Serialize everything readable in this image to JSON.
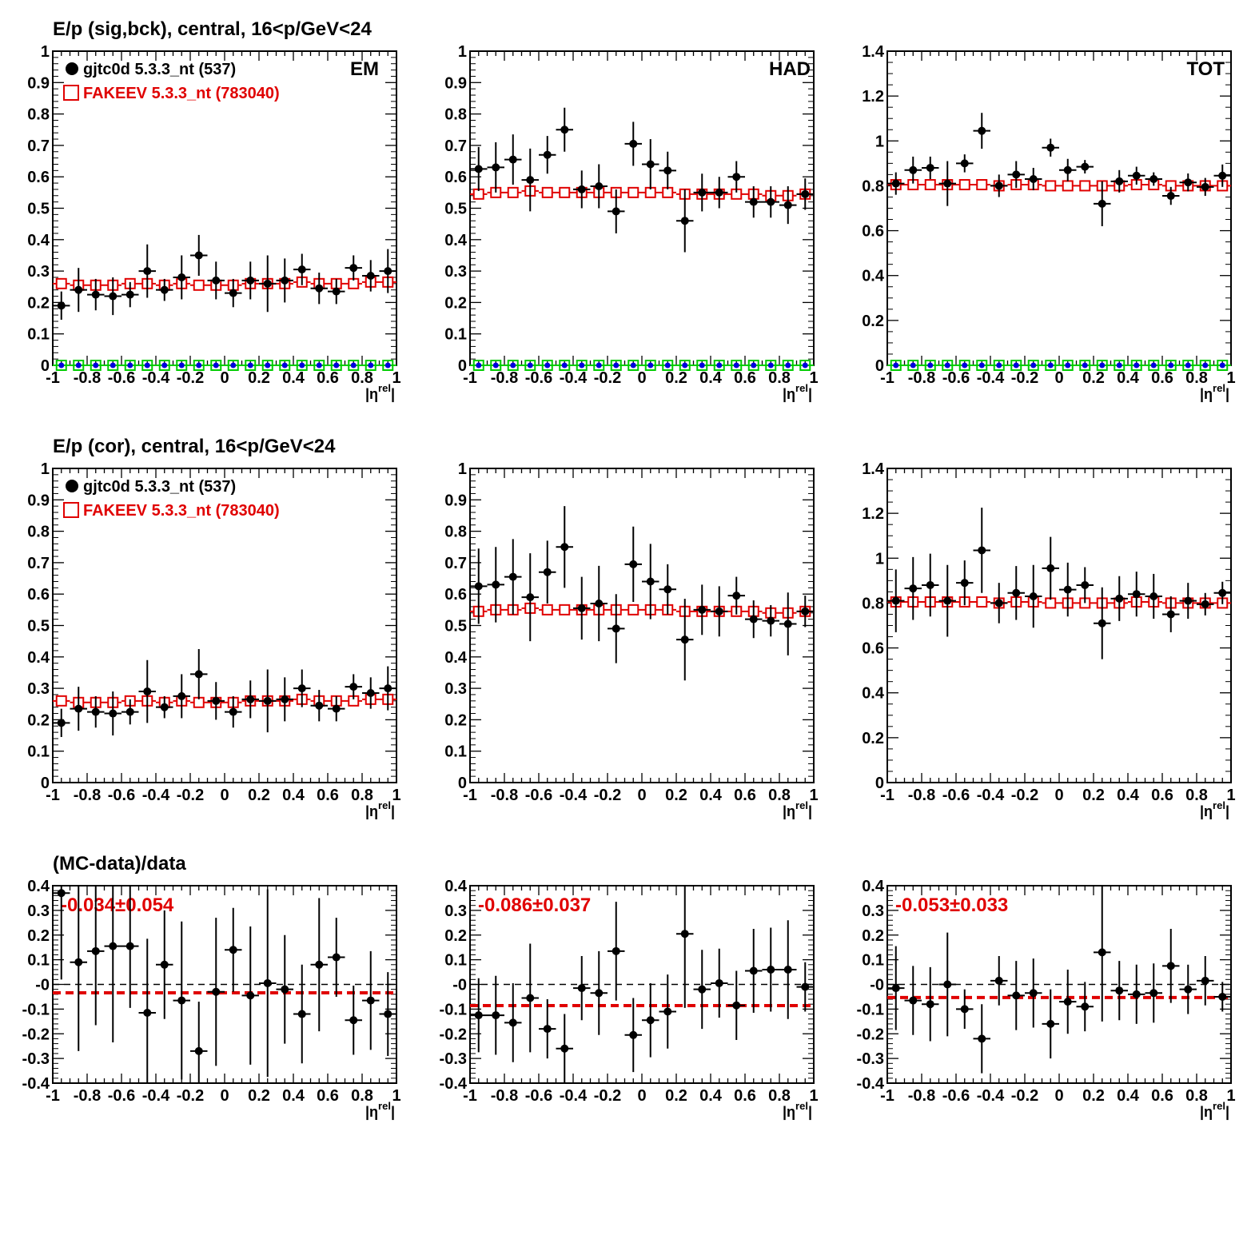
{
  "row_titles": [
    "E/p (sig,bck), central, 16<p/GeV<24",
    "E/p (cor), central, 16<p/GeV<24",
    "(MC-data)/data"
  ],
  "legend": {
    "data_label": "gjtc0d 5.3.3_nt (537)",
    "mc_label": "FAKEEV 5.3.3_nt (783040)"
  },
  "column_labels": [
    "EM",
    "HAD",
    "TOT"
  ],
  "x_axis_label": "|η^rel|",
  "ratio_labels": [
    "-0.034±0.054",
    "-0.086±0.037",
    "-0.053±0.033"
  ],
  "colors": {
    "data": "#000000",
    "mc": "#e00000",
    "green": "#00cc00",
    "blue": "#0000dd",
    "ratio_line": "#e00000"
  },
  "chart_data": [
    {
      "type": "scatter",
      "panel": "row1-EM",
      "title": "E/p (sig,bck), central, 16<p/GeV<24",
      "corner_label": "EM",
      "x": [
        -0.95,
        -0.85,
        -0.75,
        -0.65,
        -0.55,
        -0.45,
        -0.35,
        -0.25,
        -0.15,
        -0.05,
        0.05,
        0.15,
        0.25,
        0.35,
        0.45,
        0.55,
        0.65,
        0.75,
        0.85,
        0.95
      ],
      "xlim": [
        -1,
        1
      ],
      "ylim": [
        0,
        1
      ],
      "yticks": [
        "0",
        "0.1",
        "0.2",
        "0.3",
        "0.4",
        "0.5",
        "0.6",
        "0.7",
        "0.8",
        "0.9",
        "1"
      ],
      "series": [
        {
          "name": "gjtc0d 5.3.3_nt (537)",
          "values": [
            0.19,
            0.24,
            0.225,
            0.22,
            0.225,
            0.3,
            0.24,
            0.28,
            0.35,
            0.27,
            0.23,
            0.27,
            0.26,
            0.27,
            0.305,
            0.245,
            0.235,
            0.31,
            0.285,
            0.3
          ],
          "errors": [
            0.045,
            0.07,
            0.05,
            0.06,
            0.04,
            0.085,
            0.035,
            0.07,
            0.065,
            0.06,
            0.045,
            0.06,
            0.09,
            0.07,
            0.05,
            0.05,
            0.04,
            0.04,
            0.05,
            0.07
          ]
        },
        {
          "name": "FAKEEV 5.3.3_nt (783040)",
          "values": [
            0.26,
            0.255,
            0.255,
            0.255,
            0.26,
            0.26,
            0.255,
            0.26,
            0.255,
            0.255,
            0.255,
            0.26,
            0.26,
            0.26,
            0.265,
            0.26,
            0.26,
            0.26,
            0.265,
            0.265
          ]
        },
        {
          "name": "",
          "values": [
            0,
            0,
            0,
            0,
            0,
            0,
            0,
            0,
            0,
            0,
            0,
            0,
            0,
            0,
            0,
            0,
            0,
            0,
            0,
            0
          ]
        }
      ]
    },
    {
      "type": "scatter",
      "panel": "row1-HAD",
      "corner_label": "HAD",
      "x": [
        -0.95,
        -0.85,
        -0.75,
        -0.65,
        -0.55,
        -0.45,
        -0.35,
        -0.25,
        -0.15,
        -0.05,
        0.05,
        0.15,
        0.25,
        0.35,
        0.45,
        0.55,
        0.65,
        0.75,
        0.85,
        0.95
      ],
      "xlim": [
        -1,
        1
      ],
      "ylim": [
        0,
        1
      ],
      "yticks": [
        "0",
        "0.1",
        "0.2",
        "0.3",
        "0.4",
        "0.5",
        "0.6",
        "0.7",
        "0.8",
        "0.9",
        "1"
      ],
      "series": [
        {
          "name": "gjtc0d 5.3.3_nt (537)",
          "values": [
            0.625,
            0.63,
            0.655,
            0.59,
            0.67,
            0.75,
            0.56,
            0.57,
            0.49,
            0.705,
            0.64,
            0.62,
            0.46,
            0.55,
            0.55,
            0.6,
            0.52,
            0.52,
            0.51,
            0.545
          ],
          "errors": [
            0.07,
            0.08,
            0.08,
            0.1,
            0.06,
            0.07,
            0.06,
            0.07,
            0.07,
            0.07,
            0.08,
            0.06,
            0.1,
            0.06,
            0.05,
            0.05,
            0.05,
            0.05,
            0.06,
            0.05
          ]
        },
        {
          "name": "FAKEEV 5.3.3_nt (783040)",
          "values": [
            0.545,
            0.55,
            0.55,
            0.555,
            0.55,
            0.55,
            0.55,
            0.55,
            0.55,
            0.55,
            0.55,
            0.55,
            0.545,
            0.545,
            0.545,
            0.545,
            0.545,
            0.54,
            0.54,
            0.545
          ]
        },
        {
          "name": "",
          "values": [
            0,
            0,
            0,
            0,
            0,
            0,
            0,
            0,
            0,
            0,
            0,
            0,
            0,
            0,
            0,
            0,
            0,
            0,
            0,
            0
          ]
        }
      ]
    },
    {
      "type": "scatter",
      "panel": "row1-TOT",
      "corner_label": "TOT",
      "x": [
        -0.95,
        -0.85,
        -0.75,
        -0.65,
        -0.55,
        -0.45,
        -0.35,
        -0.25,
        -0.15,
        -0.05,
        0.05,
        0.15,
        0.25,
        0.35,
        0.45,
        0.55,
        0.65,
        0.75,
        0.85,
        0.95
      ],
      "xlim": [
        -1,
        1
      ],
      "ylim": [
        0,
        1.4
      ],
      "yticks": [
        "0",
        "0.2",
        "0.4",
        "0.6",
        "0.8",
        "1",
        "1.2",
        "1.4"
      ],
      "series": [
        {
          "name": "gjtc0d 5.3.3_nt (537)",
          "values": [
            0.81,
            0.87,
            0.88,
            0.81,
            0.9,
            1.045,
            0.8,
            0.85,
            0.83,
            0.97,
            0.87,
            0.885,
            0.72,
            0.82,
            0.845,
            0.83,
            0.755,
            0.815,
            0.795,
            0.845
          ],
          "errors": [
            0.05,
            0.06,
            0.05,
            0.1,
            0.04,
            0.08,
            0.05,
            0.06,
            0.05,
            0.04,
            0.05,
            0.03,
            0.1,
            0.05,
            0.04,
            0.03,
            0.04,
            0.04,
            0.04,
            0.05
          ]
        },
        {
          "name": "FAKEEV 5.3.3_nt (783040)",
          "values": [
            0.805,
            0.805,
            0.805,
            0.805,
            0.805,
            0.805,
            0.8,
            0.805,
            0.805,
            0.8,
            0.8,
            0.8,
            0.8,
            0.8,
            0.805,
            0.805,
            0.8,
            0.8,
            0.8,
            0.8
          ]
        },
        {
          "name": "",
          "values": [
            0,
            0,
            0,
            0,
            0,
            0,
            0,
            0,
            0,
            0,
            0,
            0,
            0,
            0,
            0,
            0,
            0,
            0,
            0,
            0
          ]
        }
      ]
    },
    {
      "type": "scatter",
      "panel": "row2-EM",
      "title": "E/p (cor), central, 16<p/GeV<24",
      "x": [
        -0.95,
        -0.85,
        -0.75,
        -0.65,
        -0.55,
        -0.45,
        -0.35,
        -0.25,
        -0.15,
        -0.05,
        0.05,
        0.15,
        0.25,
        0.35,
        0.45,
        0.55,
        0.65,
        0.75,
        0.85,
        0.95
      ],
      "xlim": [
        -1,
        1
      ],
      "ylim": [
        0,
        1
      ],
      "yticks": [
        "0",
        "0.1",
        "0.2",
        "0.3",
        "0.4",
        "0.5",
        "0.6",
        "0.7",
        "0.8",
        "0.9",
        "1"
      ],
      "series": [
        {
          "name": "gjtc0d 5.3.3_nt (537)",
          "values": [
            0.19,
            0.235,
            0.225,
            0.22,
            0.225,
            0.29,
            0.24,
            0.275,
            0.345,
            0.26,
            0.225,
            0.265,
            0.26,
            0.265,
            0.3,
            0.245,
            0.235,
            0.305,
            0.285,
            0.3
          ],
          "errors": [
            0.045,
            0.07,
            0.05,
            0.07,
            0.04,
            0.1,
            0.035,
            0.07,
            0.08,
            0.06,
            0.05,
            0.06,
            0.1,
            0.07,
            0.06,
            0.05,
            0.04,
            0.04,
            0.05,
            0.07
          ]
        },
        {
          "name": "FAKEEV 5.3.3_nt (783040)",
          "values": [
            0.26,
            0.255,
            0.255,
            0.255,
            0.26,
            0.26,
            0.255,
            0.26,
            0.255,
            0.255,
            0.255,
            0.26,
            0.26,
            0.26,
            0.265,
            0.26,
            0.26,
            0.26,
            0.265,
            0.265
          ]
        }
      ]
    },
    {
      "type": "scatter",
      "panel": "row2-HAD",
      "x": [
        -0.95,
        -0.85,
        -0.75,
        -0.65,
        -0.55,
        -0.45,
        -0.35,
        -0.25,
        -0.15,
        -0.05,
        0.05,
        0.15,
        0.25,
        0.35,
        0.45,
        0.55,
        0.65,
        0.75,
        0.85,
        0.95
      ],
      "xlim": [
        -1,
        1
      ],
      "ylim": [
        0,
        1
      ],
      "yticks": [
        "0",
        "0.1",
        "0.2",
        "0.3",
        "0.4",
        "0.5",
        "0.6",
        "0.7",
        "0.8",
        "0.9",
        "1"
      ],
      "series": [
        {
          "name": "gjtc0d 5.3.3_nt (537)",
          "values": [
            0.625,
            0.63,
            0.655,
            0.59,
            0.67,
            0.75,
            0.555,
            0.57,
            0.49,
            0.695,
            0.64,
            0.615,
            0.455,
            0.55,
            0.545,
            0.595,
            0.52,
            0.515,
            0.505,
            0.545
          ],
          "errors": [
            0.12,
            0.12,
            0.12,
            0.14,
            0.1,
            0.13,
            0.1,
            0.12,
            0.11,
            0.12,
            0.12,
            0.08,
            0.13,
            0.08,
            0.08,
            0.06,
            0.06,
            0.05,
            0.1,
            0.05
          ]
        },
        {
          "name": "FAKEEV 5.3.3_nt (783040)",
          "values": [
            0.545,
            0.55,
            0.55,
            0.555,
            0.55,
            0.55,
            0.55,
            0.55,
            0.55,
            0.55,
            0.55,
            0.55,
            0.545,
            0.545,
            0.545,
            0.545,
            0.545,
            0.54,
            0.54,
            0.545
          ]
        }
      ]
    },
    {
      "type": "scatter",
      "panel": "row2-TOT",
      "x": [
        -0.95,
        -0.85,
        -0.75,
        -0.65,
        -0.55,
        -0.45,
        -0.35,
        -0.25,
        -0.15,
        -0.05,
        0.05,
        0.15,
        0.25,
        0.35,
        0.45,
        0.55,
        0.65,
        0.75,
        0.85,
        0.95
      ],
      "xlim": [
        -1,
        1
      ],
      "ylim": [
        0,
        1.4
      ],
      "yticks": [
        "0",
        "0.2",
        "0.4",
        "0.6",
        "0.8",
        "1",
        "1.2",
        "1.4"
      ],
      "series": [
        {
          "name": "gjtc0d 5.3.3_nt (537)",
          "values": [
            0.81,
            0.865,
            0.88,
            0.81,
            0.89,
            1.035,
            0.8,
            0.845,
            0.83,
            0.955,
            0.86,
            0.88,
            0.71,
            0.82,
            0.84,
            0.83,
            0.75,
            0.81,
            0.795,
            0.845
          ],
          "errors": [
            0.14,
            0.14,
            0.14,
            0.16,
            0.1,
            0.19,
            0.09,
            0.12,
            0.14,
            0.14,
            0.12,
            0.08,
            0.16,
            0.1,
            0.1,
            0.1,
            0.08,
            0.08,
            0.05,
            0.05
          ]
        },
        {
          "name": "FAKEEV 5.3.3_nt (783040)",
          "values": [
            0.805,
            0.805,
            0.805,
            0.805,
            0.805,
            0.805,
            0.8,
            0.805,
            0.805,
            0.8,
            0.8,
            0.8,
            0.8,
            0.8,
            0.805,
            0.805,
            0.8,
            0.8,
            0.8,
            0.8
          ]
        }
      ]
    },
    {
      "type": "scatter",
      "panel": "row3-EM",
      "title": "(MC-data)/data",
      "x": [
        -0.95,
        -0.85,
        -0.75,
        -0.65,
        -0.55,
        -0.45,
        -0.35,
        -0.25,
        -0.15,
        -0.05,
        0.05,
        0.15,
        0.25,
        0.35,
        0.45,
        0.55,
        0.65,
        0.75,
        0.85,
        0.95
      ],
      "xlim": [
        -1,
        1
      ],
      "ylim": [
        -0.4,
        0.4
      ],
      "yticks": [
        "-0.4",
        "-0.3",
        "-0.2",
        "-0.1",
        "-0",
        "0.1",
        "0.2",
        "0.3",
        "0.4"
      ],
      "fit_value": -0.034,
      "series": [
        {
          "name": "",
          "values": [
            0.37,
            0.09,
            0.135,
            0.155,
            0.155,
            -0.115,
            0.08,
            -0.065,
            -0.27,
            -0.03,
            0.14,
            -0.045,
            0.005,
            -0.02,
            -0.12,
            0.08,
            0.11,
            -0.145,
            -0.065,
            -0.12
          ],
          "errors": [
            0.35,
            0.36,
            0.3,
            0.39,
            0.25,
            0.3,
            0.22,
            0.32,
            0.2,
            0.3,
            0.17,
            0.28,
            0.38,
            0.22,
            0.2,
            0.27,
            0.16,
            0.14,
            0.2,
            0.17
          ]
        }
      ]
    },
    {
      "type": "scatter",
      "panel": "row3-HAD",
      "x": [
        -0.95,
        -0.85,
        -0.75,
        -0.65,
        -0.55,
        -0.45,
        -0.35,
        -0.25,
        -0.15,
        -0.05,
        0.05,
        0.15,
        0.25,
        0.35,
        0.45,
        0.55,
        0.65,
        0.75,
        0.85,
        0.95
      ],
      "xlim": [
        -1,
        1
      ],
      "ylim": [
        -0.4,
        0.4
      ],
      "yticks": [
        "-0.4",
        "-0.3",
        "-0.2",
        "-0.1",
        "-0",
        "0.1",
        "0.2",
        "0.3",
        "0.4"
      ],
      "fit_value": -0.086,
      "series": [
        {
          "name": "",
          "values": [
            -0.125,
            -0.125,
            -0.155,
            -0.055,
            -0.18,
            -0.26,
            -0.015,
            -0.035,
            0.135,
            -0.205,
            -0.145,
            -0.11,
            0.205,
            -0.02,
            0.005,
            -0.085,
            0.055,
            0.06,
            0.06,
            -0.01
          ],
          "errors": [
            0.15,
            0.16,
            0.16,
            0.22,
            0.12,
            0.14,
            0.13,
            0.17,
            0.2,
            0.15,
            0.15,
            0.15,
            0.3,
            0.16,
            0.14,
            0.14,
            0.17,
            0.17,
            0.2,
            0.1
          ]
        }
      ]
    },
    {
      "type": "scatter",
      "panel": "row3-TOT",
      "x": [
        -0.95,
        -0.85,
        -0.75,
        -0.65,
        -0.55,
        -0.45,
        -0.35,
        -0.25,
        -0.15,
        -0.05,
        0.05,
        0.15,
        0.25,
        0.35,
        0.45,
        0.55,
        0.65,
        0.75,
        0.85,
        0.95
      ],
      "xlim": [
        -1,
        1
      ],
      "ylim": [
        -0.4,
        0.4
      ],
      "yticks": [
        "-0.4",
        "-0.3",
        "-0.2",
        "-0.1",
        "-0",
        "0.1",
        "0.2",
        "0.3",
        "0.4"
      ],
      "fit_value": -0.053,
      "series": [
        {
          "name": "",
          "values": [
            -0.015,
            -0.065,
            -0.08,
            0.0,
            -0.1,
            -0.22,
            0.015,
            -0.045,
            -0.035,
            -0.16,
            -0.07,
            -0.09,
            0.13,
            -0.025,
            -0.04,
            -0.035,
            0.075,
            -0.02,
            0.015,
            -0.05
          ],
          "errors": [
            0.17,
            0.14,
            0.15,
            0.21,
            0.08,
            0.14,
            0.1,
            0.14,
            0.14,
            0.14,
            0.13,
            0.1,
            0.28,
            0.12,
            0.12,
            0.12,
            0.15,
            0.1,
            0.1,
            0.06
          ]
        }
      ]
    }
  ]
}
